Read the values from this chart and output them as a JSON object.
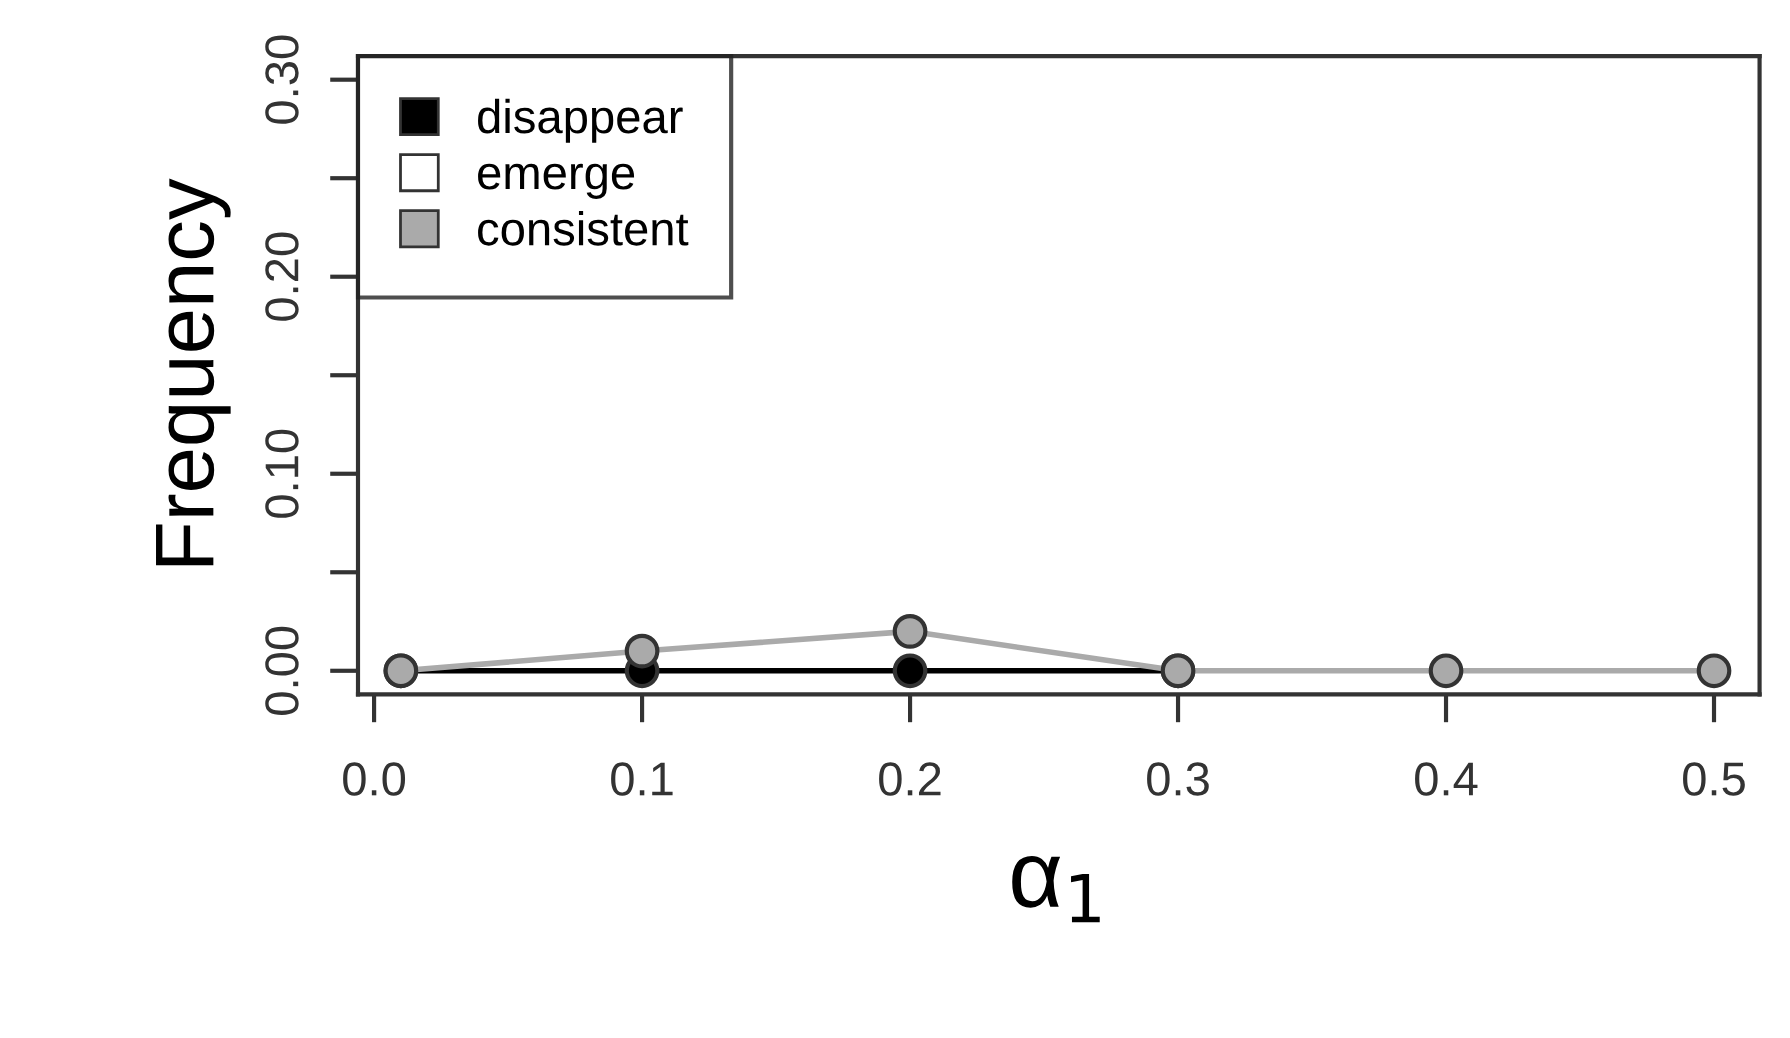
{
  "chart_data": {
    "type": "line",
    "xlabel": "α$_{1}$",
    "ylabel": "Frequency",
    "x": [
      0.01,
      0.1,
      0.2,
      0.3,
      0.4,
      0.5
    ],
    "series": [
      {
        "name": "disappear",
        "color": "#000000",
        "values": [
          0,
          0,
          0,
          0,
          null,
          null
        ]
      },
      {
        "name": "emerge",
        "color": "#ffffff",
        "values": [
          null,
          null,
          null,
          null,
          null,
          null
        ]
      },
      {
        "name": "consistent",
        "color": "#aaaaaa",
        "values": [
          0,
          0.01,
          0.02,
          0,
          0,
          0
        ]
      }
    ],
    "xlim": [
      -0.006,
      0.517
    ],
    "ylim": [
      -0.012,
      0.312
    ],
    "xticks": [
      {
        "value": 0,
        "label": "0.0"
      },
      0.1,
      0.2,
      0.3,
      0.4,
      0.5
    ],
    "yticks": [
      {
        "value": 0,
        "label": "0.00"
      },
      {
        "value": 0.05,
        "label": null
      },
      {
        "value": 0.1,
        "label": "0.10"
      },
      {
        "value": 0.15,
        "label": null
      },
      {
        "value": 0.2,
        "label": "0.20"
      },
      {
        "value": 0.25,
        "label": null
      },
      {
        "value": 0.3,
        "label": "0.30"
      }
    ],
    "legend": "top left",
    "marker": "circle",
    "grid": false
  }
}
